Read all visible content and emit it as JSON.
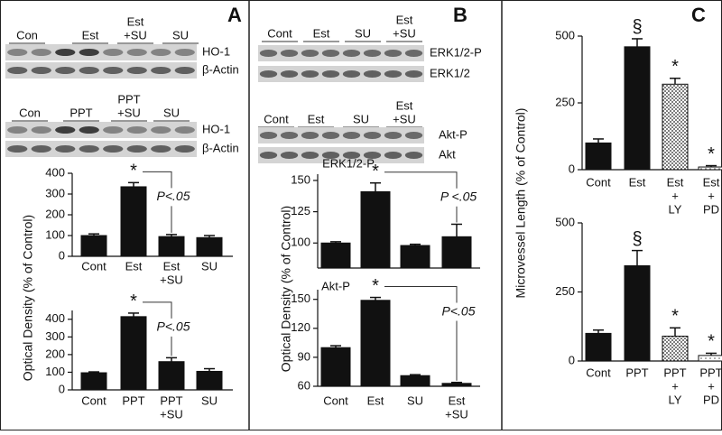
{
  "panel_labels": [
    "A",
    "B",
    "C"
  ],
  "y_labels": [
    "Optical Density (% of Control)",
    "Optical Density (% of Control)",
    "Microvessel Length (% of Control)"
  ],
  "blots": [
    {
      "lanes": [
        "Con",
        "Est",
        [
          "Est",
          "+SU"
        ],
        "SU"
      ],
      "rows": [
        "HO-1",
        "β-Actin"
      ]
    },
    {
      "lanes": [
        "Con",
        "PPT",
        [
          "PPT",
          "+SU"
        ],
        "SU"
      ],
      "rows": [
        "HO-1",
        "β-Actin"
      ]
    },
    {
      "lanes": [
        "Cont",
        "Est",
        "SU",
        [
          "Est",
          "+SU"
        ]
      ],
      "rows": [
        "ERK1/2-P",
        "ERK1/2"
      ]
    },
    {
      "lanes": [
        "Cont",
        "Est",
        "SU",
        [
          "Est",
          "+SU"
        ]
      ],
      "rows": [
        "Akt-P",
        "Akt"
      ]
    }
  ],
  "chart_data": [
    {
      "type": "bar",
      "categories": [
        "Cont",
        "Est",
        [
          "Est",
          "+SU"
        ],
        "SU"
      ],
      "values": [
        100,
        335,
        95,
        90
      ],
      "errors": [
        8,
        20,
        10,
        10
      ],
      "color": "#111111",
      "ylim": [
        0,
        400
      ],
      "yticks": [
        0,
        100,
        200,
        300,
        400
      ],
      "annotations": [
        "*",
        "P<.05"
      ]
    },
    {
      "type": "bar",
      "categories": [
        "Cont",
        "PPT",
        [
          "PPT",
          "+SU"
        ],
        "SU"
      ],
      "values": [
        97,
        415,
        160,
        105
      ],
      "errors": [
        5,
        20,
        22,
        15
      ],
      "color": "#111111",
      "ylim": [
        0,
        450
      ],
      "yticks": [
        0,
        100,
        200,
        300,
        400
      ],
      "annotations": [
        "*",
        "P<.05"
      ]
    },
    {
      "type": "bar",
      "title": "ERK1/2-P",
      "values": [
        100,
        141,
        98,
        105
      ],
      "errors": [
        1,
        7,
        1,
        10
      ],
      "color": "#111111",
      "ylim": [
        80,
        155
      ],
      "yticks": [
        100,
        125,
        150
      ],
      "annotations": [
        "*",
        "P <.05"
      ]
    },
    {
      "type": "bar",
      "title": "Akt-P",
      "categories": [
        "Cont",
        "Est",
        "SU",
        [
          "Est",
          "+SU"
        ]
      ],
      "values": [
        100,
        149,
        71,
        63
      ],
      "errors": [
        2,
        3,
        1,
        1
      ],
      "color": "#111111",
      "ylim": [
        60,
        160
      ],
      "yticks": [
        60,
        90,
        120,
        150
      ],
      "annotations": [
        "*",
        "P<.05"
      ]
    },
    {
      "type": "bar",
      "categories": [
        "Cont",
        "Est",
        [
          "Est",
          "+",
          "LY"
        ],
        [
          "Est",
          "+",
          "PD"
        ]
      ],
      "values": [
        100,
        460,
        320,
        10
      ],
      "errors": [
        15,
        30,
        22,
        5
      ],
      "color": "#111111",
      "fills": [
        "solid",
        "solid",
        "dots",
        "sparse-dots"
      ],
      "ylim": [
        0,
        500
      ],
      "yticks": [
        0,
        250,
        500
      ],
      "annotations": [
        "§",
        "*",
        "*"
      ]
    },
    {
      "type": "bar",
      "categories": [
        "Cont",
        "PPT",
        [
          "PPT",
          "+",
          "LY"
        ],
        [
          "PPT",
          "+",
          "PD"
        ]
      ],
      "values": [
        100,
        345,
        90,
        20
      ],
      "errors": [
        12,
        55,
        30,
        8
      ],
      "color": "#111111",
      "fills": [
        "solid",
        "solid",
        "dots",
        "sparse-dots"
      ],
      "ylim": [
        0,
        500
      ],
      "yticks": [
        0,
        250,
        500
      ],
      "annotations": [
        "§",
        "*",
        "*"
      ]
    }
  ]
}
